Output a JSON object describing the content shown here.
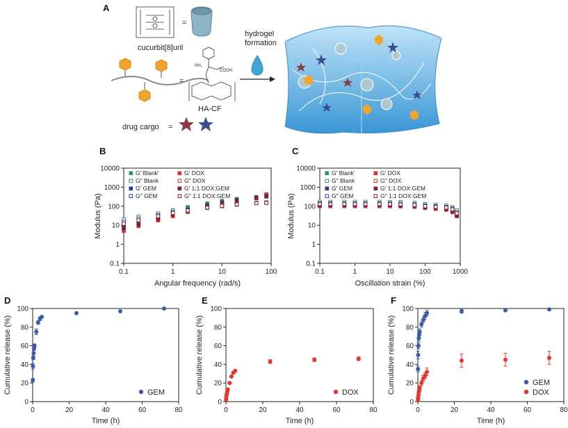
{
  "panels": {
    "A": "A",
    "B": "B",
    "C": "C",
    "D": "D",
    "E": "E",
    "F": "F"
  },
  "schematic": {
    "cucurbituril": "cucurbit[8]uril",
    "hydrogel_line1": "hydrogel",
    "hydrogel_line2": "formation",
    "hacf": "HA-CF",
    "drug_cargo": "drug cargo",
    "chem_nh2": "NH₂",
    "chem_cooh": "COOH"
  },
  "colors": {
    "teal": "#2f8f6f",
    "red": "#d9332a",
    "navy": "#2a3d8f",
    "darkred": "#7a1f3a",
    "blue_release": "#3b5ba5",
    "red_release": "#e0382f",
    "gel": "#5aaee0"
  },
  "chart_data": [
    {
      "id": "B",
      "type": "scatter",
      "xlabel": "Angular frequency (rad/s)",
      "ylabel": "Modulus (Pa)",
      "xscale": "log",
      "yscale": "log",
      "xlim": [
        0.1,
        100
      ],
      "ylim": [
        0.1,
        10000
      ],
      "xticks": [
        "0.1",
        "1",
        "10",
        "100"
      ],
      "yticks": [
        "0.1",
        "1",
        "10",
        "100",
        "1000",
        "10000"
      ],
      "legend": [
        "G' Blank'",
        "G' DOX",
        "G\" Blank",
        "G\" DOX",
        "G' GEM",
        "G' 1:1 DOX:GEM",
        "G\" GEM",
        "G\" 1:1 DOX:GEM"
      ],
      "series": [
        {
          "name": "G' Blank'",
          "x": [
            0.1,
            0.2,
            0.5,
            1,
            2,
            5,
            10,
            20,
            50,
            80
          ],
          "y": [
            12,
            20,
            38,
            60,
            90,
            140,
            190,
            240,
            300,
            320
          ]
        },
        {
          "name": "G\" Blank",
          "x": [
            0.1,
            0.2,
            0.5,
            1,
            2,
            5,
            10,
            20,
            50,
            80
          ],
          "y": [
            20,
            28,
            42,
            58,
            75,
            100,
            120,
            135,
            150,
            155
          ]
        },
        {
          "name": "G' DOX",
          "x": [
            0.1,
            0.2,
            0.5,
            1,
            2,
            5,
            10,
            20,
            50,
            80
          ],
          "y": [
            5,
            9,
            18,
            30,
            50,
            85,
            130,
            180,
            260,
            420
          ]
        },
        {
          "name": "G\" DOX",
          "x": [
            0.1,
            0.2,
            0.5,
            1,
            2,
            5,
            10,
            20,
            50,
            80
          ],
          "y": [
            10,
            15,
            25,
            38,
            55,
            80,
            100,
            120,
            145,
            160
          ]
        },
        {
          "name": "G' GEM",
          "x": [
            0.1,
            0.2,
            0.5,
            1,
            2,
            5,
            10,
            20,
            50,
            80
          ],
          "y": [
            8,
            13,
            25,
            42,
            68,
            110,
            160,
            215,
            290,
            340
          ]
        },
        {
          "name": "G\" GEM",
          "x": [
            0.1,
            0.2,
            0.5,
            1,
            2,
            5,
            10,
            20,
            50,
            80
          ],
          "y": [
            15,
            22,
            34,
            48,
            65,
            90,
            110,
            128,
            148,
            152
          ]
        },
        {
          "name": "G' 1:1 DOX:GEM",
          "x": [
            0.1,
            0.2,
            0.5,
            1,
            2,
            5,
            10,
            20,
            50,
            80
          ],
          "y": [
            7,
            11,
            22,
            36,
            58,
            95,
            140,
            195,
            275,
            330
          ]
        },
        {
          "name": "G\" 1:1 DOX:GEM",
          "x": [
            0.1,
            0.2,
            0.5,
            1,
            2,
            5,
            10,
            20,
            50,
            80
          ],
          "y": [
            12,
            18,
            30,
            44,
            60,
            85,
            105,
            124,
            145,
            150
          ]
        }
      ]
    },
    {
      "id": "C",
      "type": "scatter",
      "xlabel": "Oscillation strain (%)",
      "ylabel": "Modulus (Pa)",
      "xscale": "log",
      "yscale": "log",
      "xlim": [
        0.1,
        1000
      ],
      "ylim": [
        0.1,
        10000
      ],
      "xticks": [
        "0.1",
        "1",
        "10",
        "100",
        "1000"
      ],
      "yticks": [
        "0.1",
        "1",
        "10",
        "100",
        "1000",
        "10000"
      ],
      "legend": [
        "G' Blank'",
        "G' DOX",
        "G\" Blank",
        "G\" DOX",
        "G' GEM",
        "G' 1:1 DOX:GEM",
        "G\" GEM",
        "G\" 1:1 DOX:GEM"
      ],
      "series": [
        {
          "name": "G' Blank'",
          "x": [
            0.1,
            0.2,
            0.5,
            1,
            2,
            5,
            10,
            20,
            50,
            100,
            200,
            400,
            600,
            800
          ],
          "y": [
            150,
            150,
            150,
            150,
            150,
            150,
            150,
            145,
            135,
            110,
            100,
            95,
            70,
            40
          ]
        },
        {
          "name": "G\" Blank",
          "x": [
            0.1,
            0.2,
            0.5,
            1,
            2,
            5,
            10,
            20,
            50,
            100,
            200,
            400,
            600,
            800
          ],
          "y": [
            170,
            170,
            170,
            170,
            170,
            170,
            168,
            165,
            150,
            130,
            120,
            110,
            90,
            60
          ]
        },
        {
          "name": "G' DOX",
          "x": [
            0.1,
            0.2,
            0.5,
            1,
            2,
            5,
            10,
            20,
            50,
            100,
            200,
            400,
            600,
            800
          ],
          "y": [
            100,
            100,
            100,
            100,
            100,
            100,
            100,
            98,
            92,
            80,
            72,
            65,
            48,
            30
          ]
        },
        {
          "name": "G\" DOX",
          "x": [
            0.1,
            0.2,
            0.5,
            1,
            2,
            5,
            10,
            20,
            50,
            100,
            200,
            400,
            600,
            800
          ],
          "y": [
            110,
            110,
            110,
            110,
            110,
            110,
            108,
            105,
            98,
            88,
            80,
            75,
            60,
            35
          ]
        },
        {
          "name": "G' GEM",
          "x": [
            0.1,
            0.2,
            0.5,
            1,
            2,
            5,
            10,
            20,
            50,
            100,
            200,
            400,
            600,
            800
          ],
          "y": [
            125,
            125,
            125,
            125,
            125,
            125,
            124,
            120,
            110,
            95,
            88,
            80,
            60,
            35
          ]
        },
        {
          "name": "G\" GEM",
          "x": [
            0.1,
            0.2,
            0.5,
            1,
            2,
            5,
            10,
            20,
            50,
            100,
            200,
            400,
            600,
            800
          ],
          "y": [
            140,
            140,
            140,
            140,
            140,
            140,
            138,
            135,
            125,
            110,
            100,
            92,
            75,
            48
          ]
        },
        {
          "name": "G' 1:1 DOX:GEM",
          "x": [
            0.1,
            0.2,
            0.5,
            1,
            2,
            5,
            10,
            20,
            50,
            100,
            200,
            400,
            600,
            800
          ],
          "y": [
            115,
            115,
            115,
            115,
            115,
            115,
            114,
            110,
            102,
            88,
            80,
            72,
            55,
            32
          ]
        },
        {
          "name": "G\" 1:1 DOX:GEM",
          "x": [
            0.1,
            0.2,
            0.5,
            1,
            2,
            5,
            10,
            20,
            50,
            100,
            200,
            400,
            600,
            800
          ],
          "y": [
            130,
            130,
            130,
            130,
            130,
            130,
            128,
            125,
            115,
            100,
            92,
            85,
            68,
            42
          ]
        }
      ]
    },
    {
      "id": "D",
      "type": "scatter",
      "xlabel": "Time (h)",
      "ylabel": "Cumulative release (%)",
      "xlim": [
        0,
        80
      ],
      "ylim": [
        0,
        100
      ],
      "xticks": [
        "0",
        "20",
        "40",
        "60",
        "80"
      ],
      "yticks": [
        "0",
        "20",
        "40",
        "60",
        "80",
        "100"
      ],
      "legend": [
        "GEM"
      ],
      "series": [
        {
          "name": "GEM",
          "x": [
            0.08,
            0.17,
            0.33,
            0.5,
            0.75,
            1,
            2,
            3,
            4,
            5,
            24,
            48,
            72
          ],
          "y": [
            23,
            38,
            47,
            52,
            57,
            60,
            75,
            85,
            89,
            91,
            95,
            97,
            100
          ],
          "err": [
            2,
            3,
            2,
            3,
            2,
            2,
            3,
            2,
            2,
            1,
            1,
            1,
            1
          ]
        }
      ]
    },
    {
      "id": "E",
      "type": "scatter",
      "xlabel": "Time (h)",
      "ylabel": "Cumulative release (%)",
      "xlim": [
        0,
        80
      ],
      "ylim": [
        0,
        100
      ],
      "xticks": [
        "0",
        "20",
        "40",
        "60",
        "80"
      ],
      "yticks": [
        "0",
        "20",
        "40",
        "60",
        "80",
        "100"
      ],
      "legend": [
        "DOX"
      ],
      "series": [
        {
          "name": "DOX",
          "x": [
            0.08,
            0.17,
            0.33,
            0.5,
            0.75,
            1,
            2,
            3,
            4,
            5,
            24,
            48,
            72
          ],
          "y": [
            2,
            4,
            7,
            9,
            11,
            13,
            20,
            27,
            31,
            33,
            43,
            45,
            46
          ],
          "err": [
            1,
            1,
            1,
            1,
            1,
            1,
            1,
            1,
            1,
            1,
            2,
            2,
            2
          ]
        }
      ]
    },
    {
      "id": "F",
      "type": "scatter",
      "xlabel": "Time (h)",
      "ylabel": "Cumulative release (%)",
      "xlim": [
        0,
        80
      ],
      "ylim": [
        0,
        100
      ],
      "xticks": [
        "0",
        "20",
        "40",
        "60",
        "80"
      ],
      "yticks": [
        "0",
        "20",
        "40",
        "60",
        "80",
        "100"
      ],
      "legend": [
        "GEM",
        "DOX"
      ],
      "series": [
        {
          "name": "GEM",
          "x": [
            0.08,
            0.17,
            0.33,
            0.5,
            0.75,
            1,
            2,
            3,
            4,
            5,
            24,
            48,
            72
          ],
          "y": [
            35,
            50,
            60,
            68,
            72,
            75,
            83,
            88,
            92,
            95,
            97,
            98,
            99
          ],
          "err": [
            3,
            4,
            3,
            3,
            3,
            3,
            3,
            3,
            4,
            3,
            2,
            1,
            1
          ]
        },
        {
          "name": "DOX",
          "x": [
            0.08,
            0.17,
            0.33,
            0.5,
            0.75,
            1,
            2,
            3,
            4,
            5,
            24,
            48,
            72
          ],
          "y": [
            2,
            4,
            7,
            10,
            12,
            15,
            20,
            25,
            28,
            32,
            44,
            45,
            47
          ],
          "err": [
            1,
            1,
            2,
            2,
            2,
            2,
            3,
            3,
            3,
            4,
            7,
            7,
            7
          ]
        }
      ]
    }
  ]
}
